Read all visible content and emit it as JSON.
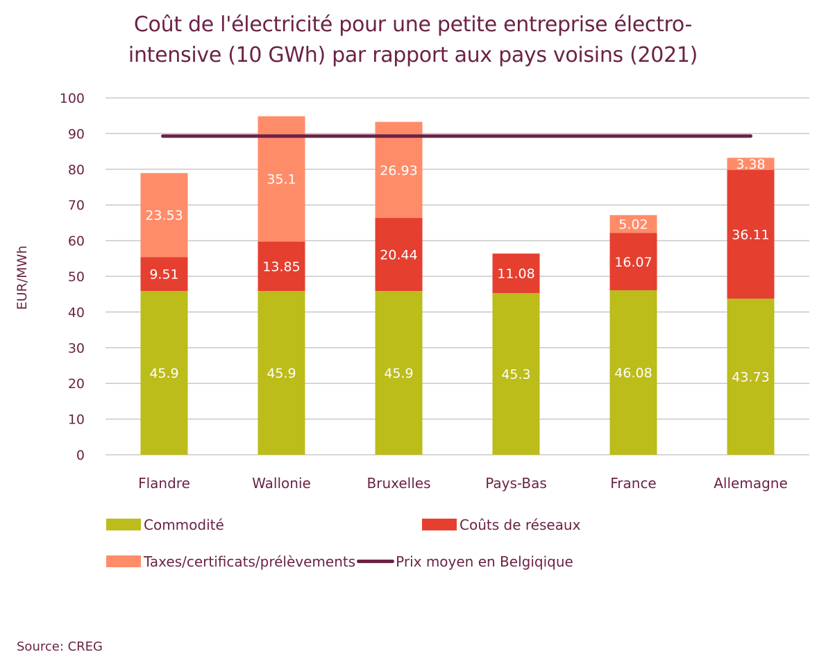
{
  "chart_data": {
    "type": "bar",
    "stacked": true,
    "title_lines": [
      "Coût de l'électricité pour une petite entreprise électro-",
      "intensive (10 GWh) par rapport aux pays voisins (2021)"
    ],
    "xlabel": "",
    "ylabel": "EUR/MWh",
    "ylim": [
      0,
      100
    ],
    "yticks": [
      0,
      10,
      20,
      30,
      40,
      50,
      60,
      70,
      80,
      90,
      100
    ],
    "ytick_labels": [
      "0",
      "10",
      "20",
      "30",
      "40",
      "50",
      "60",
      "70",
      "80",
      "90",
      "100"
    ],
    "grid": true,
    "categories": [
      "Flandre",
      "Wallonie",
      "Bruxelles",
      "Pays-Bas",
      "France",
      "Allemagne"
    ],
    "series": [
      {
        "name": "Commodité",
        "color": "#bcbc1a",
        "values": [
          45.9,
          45.9,
          45.9,
          45.3,
          46.08,
          43.73
        ],
        "labels": [
          "45.9",
          "45.9",
          "45.9",
          "45.3",
          "46.08",
          "43.73"
        ]
      },
      {
        "name": "Coûts de réseaux",
        "color": "#e53f30",
        "values": [
          9.51,
          13.85,
          20.44,
          11.08,
          16.07,
          36.11
        ],
        "labels": [
          "9.51",
          "13.85",
          "20.44",
          "11.08",
          "16.07",
          "36.11"
        ]
      },
      {
        "name": "Taxes/certificats/prélèvements",
        "color": "#ff8c69",
        "values": [
          23.53,
          35.1,
          26.93,
          0,
          5.02,
          3.38
        ],
        "labels": [
          "23.53",
          "35.1",
          "26.93",
          "",
          "5.02",
          "3.38"
        ]
      }
    ],
    "line_series": {
      "name": "Prix moyen en Belgiqique",
      "color": "#6b2245",
      "value": 89.3
    },
    "legend_position": "bottom",
    "legend": [
      {
        "label": "Commodité",
        "kind": "box",
        "color": "#bcbc1a"
      },
      {
        "label": "Coûts de réseaux",
        "kind": "box",
        "color": "#e53f30"
      },
      {
        "label": "Taxes/certificats/prélèvements",
        "kind": "box",
        "color": "#ff8c69"
      },
      {
        "label": "Prix moyen en Belgiqique",
        "kind": "line",
        "color": "#6b2245"
      }
    ],
    "source": "Source: CREG"
  }
}
